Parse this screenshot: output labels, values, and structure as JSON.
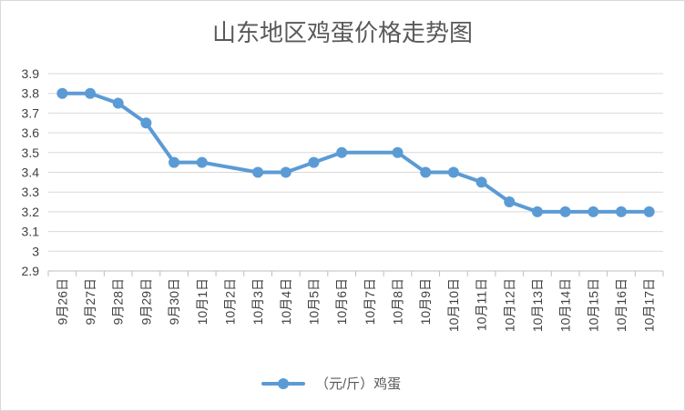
{
  "colors": {
    "series": "#5b9bd5",
    "grid": "#d9d9d9",
    "text": "#595959"
  },
  "chart_data": {
    "type": "line",
    "title": "山东地区鸡蛋价格走势图",
    "xlabel": "",
    "ylabel": "",
    "ylim": [
      2.9,
      3.9
    ],
    "yticks": [
      "2.9",
      "3",
      "3.1",
      "3.2",
      "3.3",
      "3.4",
      "3.5",
      "3.6",
      "3.7",
      "3.8",
      "3.9"
    ],
    "grid": true,
    "legend_position": "bottom",
    "categories": [
      "9月26日",
      "9月27日",
      "9月28日",
      "9月29日",
      "9月30日",
      "10月1日",
      "10月2日",
      "10月3日",
      "10月4日",
      "10月5日",
      "10月6日",
      "10月7日",
      "10月8日",
      "10月9日",
      "10月10日",
      "10月11日",
      "10月12日",
      "10月13日",
      "10月14日",
      "10月15日",
      "10月16日",
      "10月17日"
    ],
    "series": [
      {
        "name": "（元/斤）鸡蛋",
        "values": [
          3.8,
          3.8,
          3.75,
          3.65,
          3.45,
          3.45,
          null,
          3.4,
          3.4,
          3.45,
          3.5,
          null,
          3.5,
          3.4,
          3.4,
          3.35,
          3.25,
          3.2,
          3.2,
          3.2,
          3.2,
          3.2
        ]
      }
    ]
  }
}
